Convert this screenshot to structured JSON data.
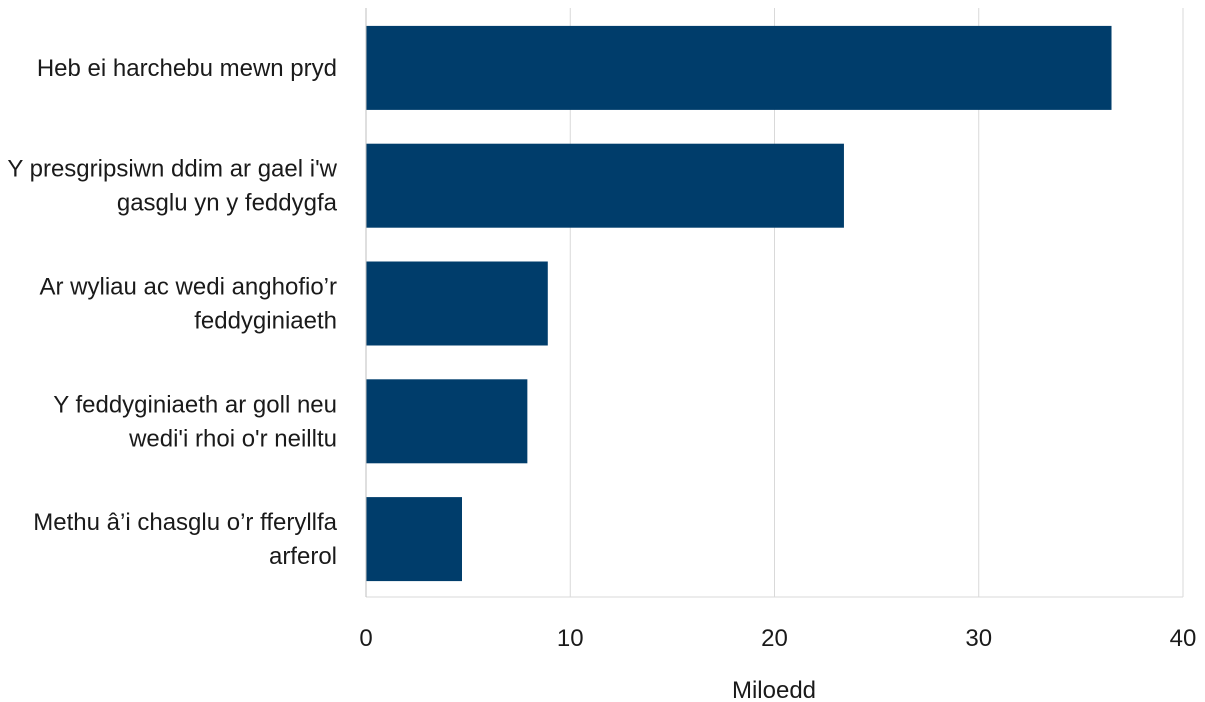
{
  "chart_data": {
    "type": "barh",
    "categories": [
      "Heb ei harchebu mewn pryd",
      "Y presgripsiwn ddim ar gael i'w gasglu yn y feddygfa",
      "Ar wyliau ac wedi anghofio’r feddyginiaeth",
      "Y feddyginiaeth ar goll neu wedi'i rhoi o'r neilltu",
      "Methu â’i chasglu o’r fferyllfa arferol"
    ],
    "values": [
      36.5,
      23.4,
      8.9,
      7.9,
      4.7
    ],
    "color": "#003d6b",
    "xlabel": "Miloedd",
    "xlim": [
      0,
      40
    ],
    "xticks": [
      0,
      10,
      20,
      30,
      40
    ],
    "grid": true
  }
}
